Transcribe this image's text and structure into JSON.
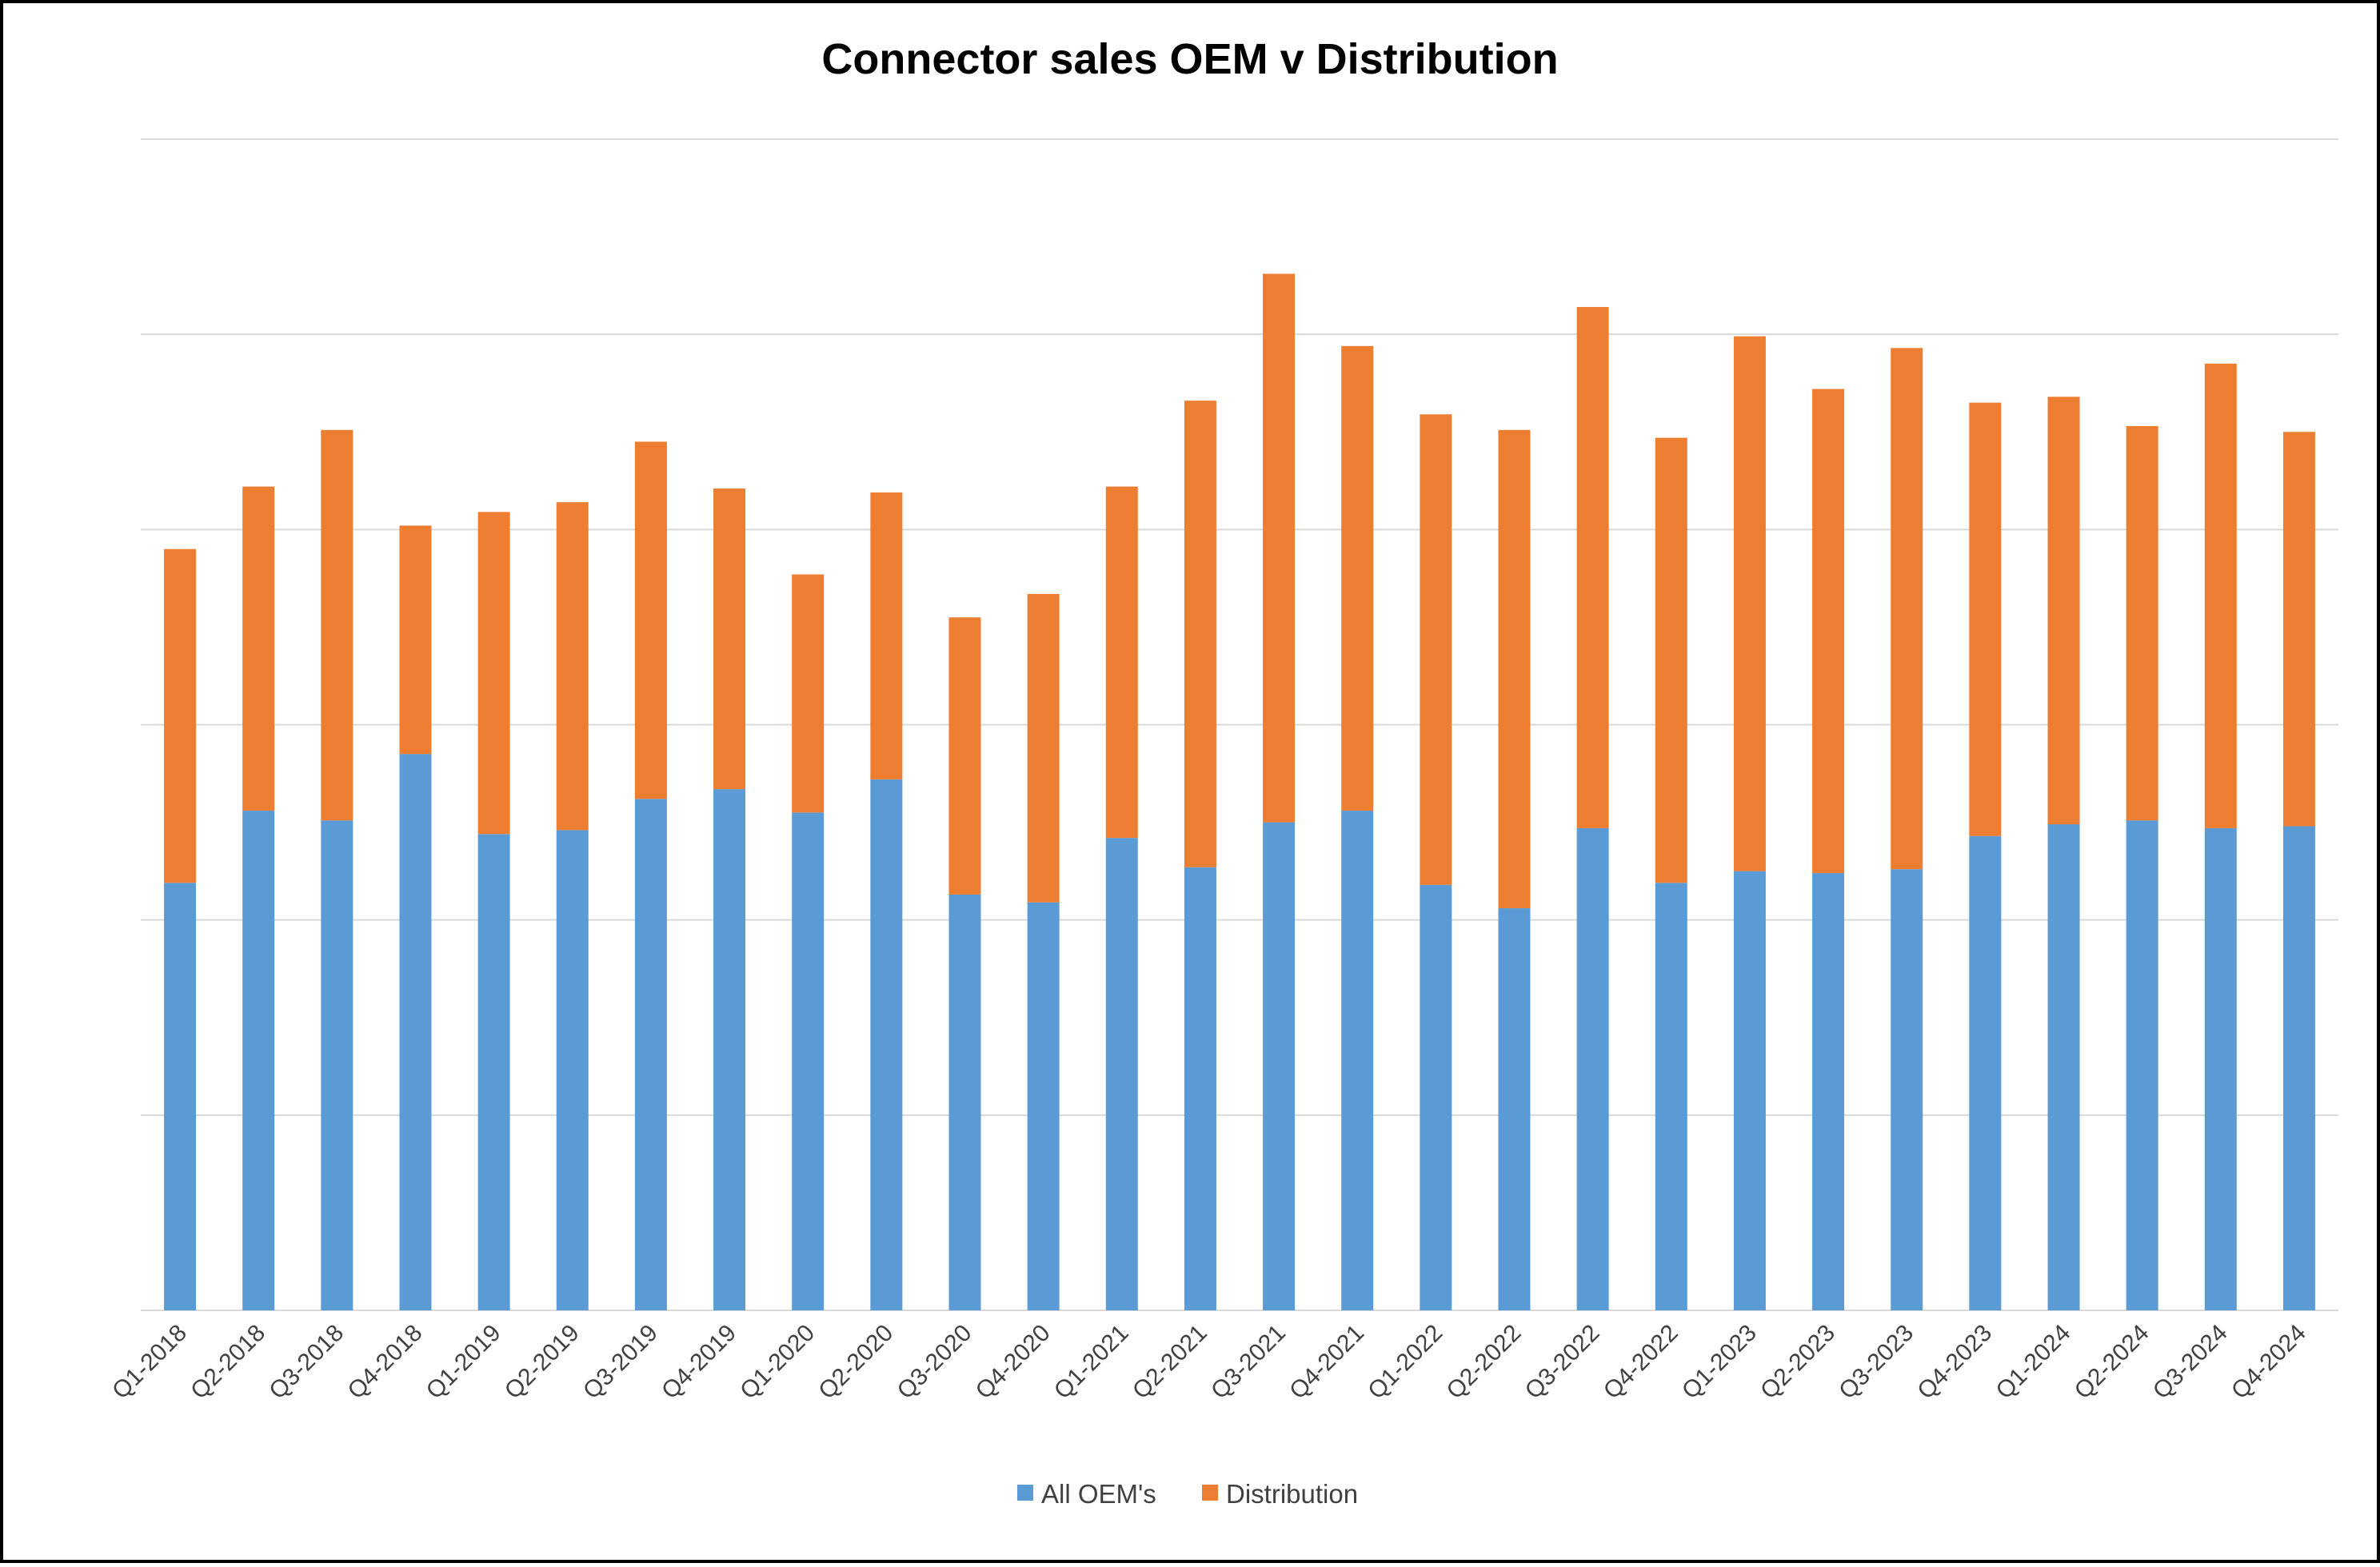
{
  "chart_data": {
    "type": "bar",
    "stacked": true,
    "title": "Connector sales OEM v Distribution",
    "xlabel": "",
    "ylabel": "",
    "grid": true,
    "y_tick_labels_shown": false,
    "ylim": [
      0,
      6
    ],
    "legend_position": "bottom",
    "categories": [
      "Q1-2018",
      "Q2-2018",
      "Q3-2018",
      "Q4-2018",
      "Q1-2019",
      "Q2-2019",
      "Q3-2019",
      "Q4-2019",
      "Q1-2020",
      "Q2-2020",
      "Q3-2020",
      "Q4-2020",
      "Q1-2021",
      "Q2-2021",
      "Q3-2021",
      "Q4-2021",
      "Q1-2022",
      "Q2-2022",
      "Q3-2022",
      "Q4-2022",
      "Q1-2023",
      "Q2-2023",
      "Q3-2023",
      "Q4-2023",
      "Q1-2024",
      "Q2-2024",
      "Q3-2024",
      "Q4-2024"
    ],
    "series": [
      {
        "name": "All OEM's",
        "color": "#5B9BD5",
        "values": [
          2.19,
          2.56,
          2.51,
          2.85,
          2.44,
          2.46,
          2.62,
          2.67,
          2.55,
          2.72,
          2.13,
          2.09,
          2.42,
          2.27,
          2.5,
          2.56,
          2.18,
          2.06,
          2.47,
          2.19,
          2.25,
          2.24,
          2.26,
          2.43,
          2.49,
          2.51,
          2.47,
          2.48
        ]
      },
      {
        "name": "Distribution",
        "color": "#ED7D31",
        "values": [
          1.71,
          1.66,
          2.0,
          1.17,
          1.65,
          1.68,
          1.83,
          1.54,
          1.22,
          1.47,
          1.42,
          1.58,
          1.8,
          2.39,
          2.81,
          2.38,
          2.41,
          2.45,
          2.67,
          2.28,
          2.74,
          2.48,
          2.67,
          2.22,
          2.19,
          2.02,
          2.38,
          2.02
        ]
      }
    ]
  }
}
